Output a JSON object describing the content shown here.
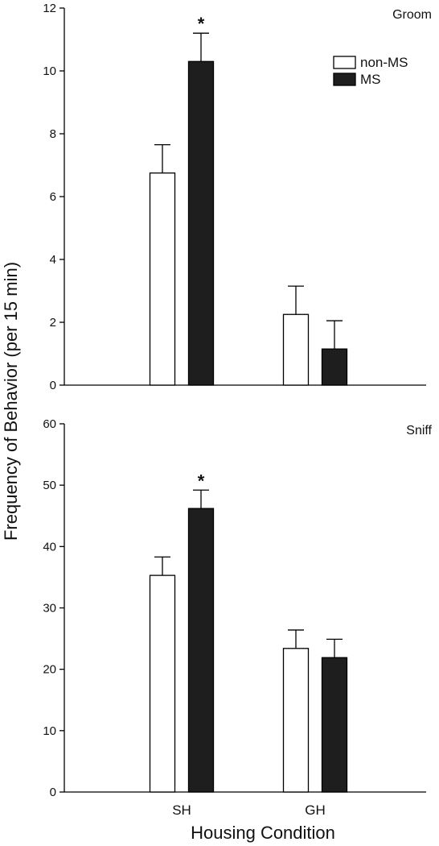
{
  "chart_data": [
    {
      "type": "bar",
      "title": "Groom",
      "categories": [
        "SH",
        "GH"
      ],
      "series": [
        {
          "name": "non-MS",
          "values": [
            6.75,
            2.25
          ],
          "errors": [
            0.9,
            0.9
          ],
          "color": "#ffffff"
        },
        {
          "name": "MS",
          "values": [
            10.3,
            1.15
          ],
          "errors": [
            0.9,
            0.9
          ],
          "color": "#1e1e1e"
        }
      ],
      "ylim": [
        0,
        12
      ],
      "yticks": [
        "0",
        "2",
        "4",
        "6",
        "8",
        "10",
        "12"
      ],
      "significance": [
        {
          "category": "SH",
          "series": "MS",
          "mark": "*"
        }
      ],
      "legend": "top-right"
    },
    {
      "type": "bar",
      "title": "Sniff",
      "categories": [
        "SH",
        "GH"
      ],
      "series": [
        {
          "name": "non-MS",
          "values": [
            35.3,
            23.4
          ],
          "errors": [
            3.0,
            3.0
          ],
          "color": "#ffffff"
        },
        {
          "name": "MS",
          "values": [
            46.2,
            21.9
          ],
          "errors": [
            3.0,
            3.0
          ],
          "color": "#1e1e1e"
        }
      ],
      "ylim": [
        0,
        60
      ],
      "yticks": [
        "0",
        "10",
        "20",
        "30",
        "40",
        "50",
        "60"
      ],
      "significance": [
        {
          "category": "SH",
          "series": "MS",
          "mark": "*"
        }
      ]
    }
  ],
  "shared": {
    "ylabel": "Frequency of Behavior (per 15 min)",
    "xlabel": "Housing Condition"
  }
}
